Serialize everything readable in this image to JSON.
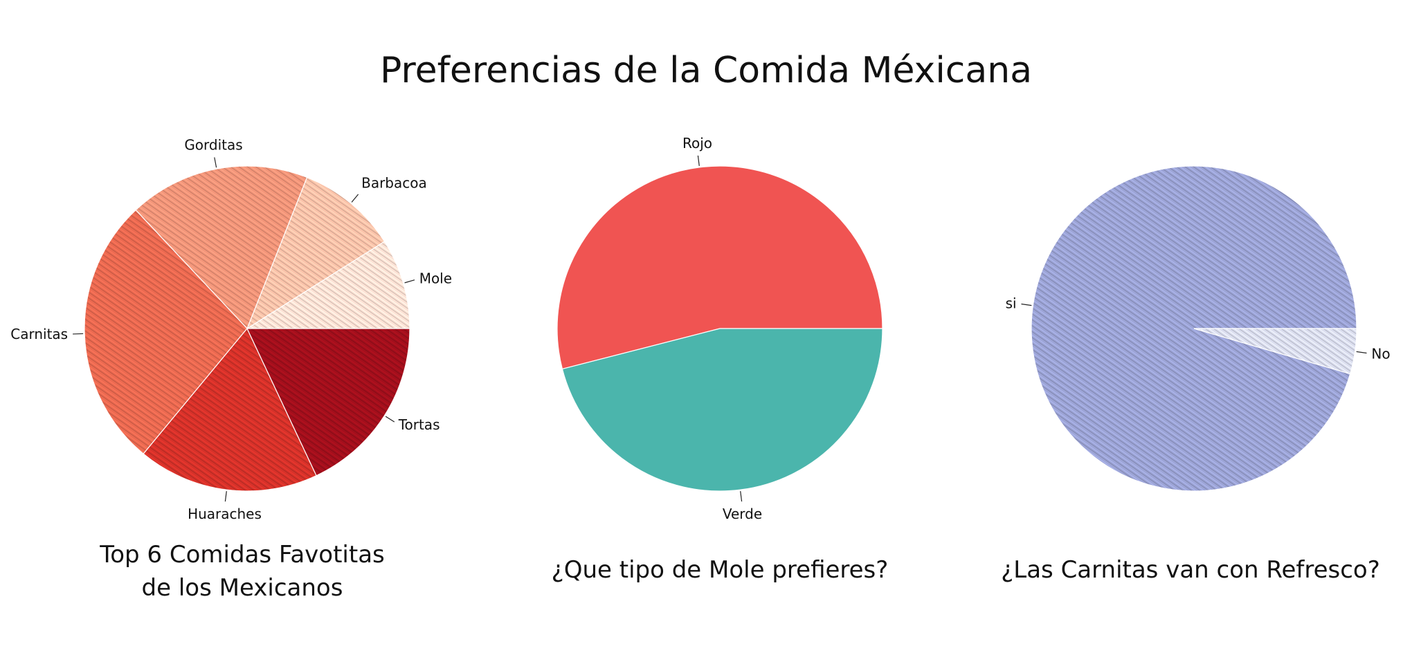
{
  "title": "Preferencias de la Comida Méxicana",
  "chart_data": [
    {
      "type": "pie",
      "title": "Top 6 Comidas Favotitas de los Mexicanos",
      "title_lines": [
        "Top 6 Comidas Favotitas",
        "de los Mexicanos"
      ],
      "labels": [
        "Mole",
        "Barbacoa",
        "Gorditas",
        "Carnitas",
        "Huaraches",
        "Tortas"
      ],
      "values": [
        9,
        10,
        18,
        27,
        18,
        18
      ],
      "colors": [
        "#fde3d6",
        "#fbc4ab",
        "#f4967a",
        "#ec6a51",
        "#d7322a",
        "#a30f1c"
      ],
      "hatched": true
    },
    {
      "type": "pie",
      "title": "¿Que tipo de Mole prefieres?",
      "labels": [
        "Rojo",
        "Verde"
      ],
      "values": [
        54,
        46
      ],
      "colors": [
        "#f05452",
        "#4bb5ac"
      ],
      "hatched": false
    },
    {
      "type": "pie",
      "title": "¿Las Carnitas van con Refresco?",
      "labels": [
        "si",
        "No"
      ],
      "values": [
        95.5,
        4.5
      ],
      "colors": [
        "#9da5d7",
        "#dcdff0"
      ],
      "hatched": true
    }
  ]
}
